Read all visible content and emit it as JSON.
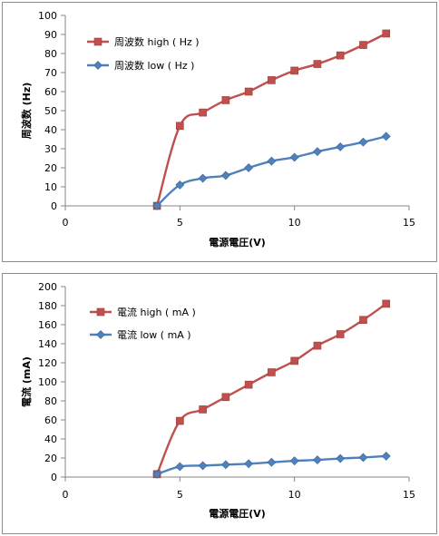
{
  "chart_data": [
    {
      "type": "line",
      "xlabel": "電源電圧(V)",
      "ylabel": "周波数 (Hz)",
      "xlim": [
        0,
        15
      ],
      "ylim": [
        0,
        100
      ],
      "xticks": [
        0,
        5,
        10,
        15
      ],
      "yticks": [
        0,
        10,
        20,
        30,
        40,
        50,
        60,
        70,
        80,
        90,
        100
      ],
      "grid": false,
      "legend": "top-left",
      "series": [
        {
          "name": "周波数 high ( Hz )",
          "color": "#c0504d",
          "marker": "square",
          "x": [
            4,
            5,
            6,
            7,
            8,
            9,
            10,
            11,
            12,
            13,
            14
          ],
          "y": [
            0,
            42,
            49,
            55.5,
            60,
            66,
            71,
            74.5,
            79,
            84.5,
            90.5
          ]
        },
        {
          "name": "周波数 low ( Hz )",
          "color": "#4f81bd",
          "marker": "diamond",
          "x": [
            4,
            5,
            6,
            7,
            8,
            9,
            10,
            11,
            12,
            13,
            14
          ],
          "y": [
            0,
            11,
            14.5,
            16,
            20,
            23.5,
            25.5,
            28.5,
            31,
            33.5,
            36.5
          ]
        }
      ]
    },
    {
      "type": "line",
      "xlabel": "電源電圧(V)",
      "ylabel": "電流 (mA)",
      "xlim": [
        0,
        15
      ],
      "ylim": [
        0,
        200
      ],
      "xticks": [
        0,
        5,
        10,
        15
      ],
      "yticks": [
        0,
        20,
        40,
        60,
        80,
        100,
        120,
        140,
        160,
        180,
        200
      ],
      "grid": false,
      "legend": "top-left",
      "series": [
        {
          "name": "電流 high ( mA )",
          "color": "#c0504d",
          "marker": "square",
          "x": [
            4,
            5,
            6,
            7,
            8,
            9,
            10,
            11,
            12,
            13,
            14
          ],
          "y": [
            3,
            59,
            71,
            84,
            97,
            110,
            122,
            138,
            150,
            165,
            182
          ]
        },
        {
          "name": "電流 low ( mA )",
          "color": "#4f81bd",
          "marker": "diamond",
          "x": [
            4,
            5,
            6,
            7,
            8,
            9,
            10,
            11,
            12,
            13,
            14
          ],
          "y": [
            3,
            11,
            12,
            13,
            14,
            15.5,
            17,
            18,
            19.5,
            20.5,
            22
          ]
        }
      ]
    }
  ]
}
